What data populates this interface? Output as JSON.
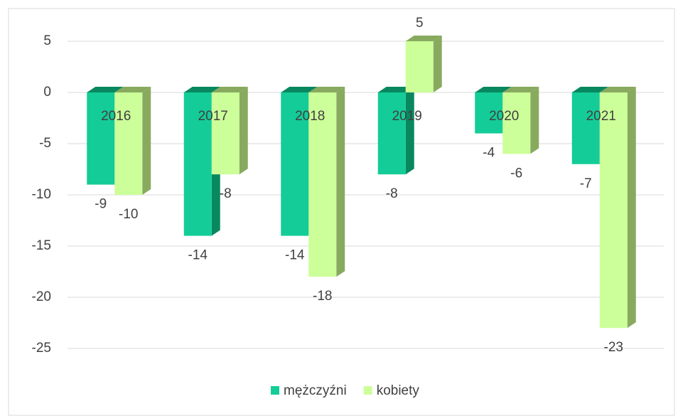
{
  "chart_data": {
    "type": "bar3d",
    "categories": [
      "2016",
      "2017",
      "2018",
      "2019",
      "2020",
      "2021"
    ],
    "series": [
      {
        "name": "mężczyźni",
        "color": "#14cc98",
        "side_color": "#08885f",
        "values": [
          -9,
          -14,
          -14,
          -8,
          -4,
          -7
        ]
      },
      {
        "name": "kobiety",
        "color": "#ccff99",
        "side_color": "#88aa5f",
        "values": [
          -10,
          -8,
          -18,
          5,
          -6,
          -23
        ]
      }
    ],
    "ylim": [
      -25,
      5
    ],
    "yticks": [
      -25,
      -20,
      -15,
      -10,
      -5,
      0,
      5
    ],
    "grid": true,
    "legend": "bottom"
  }
}
